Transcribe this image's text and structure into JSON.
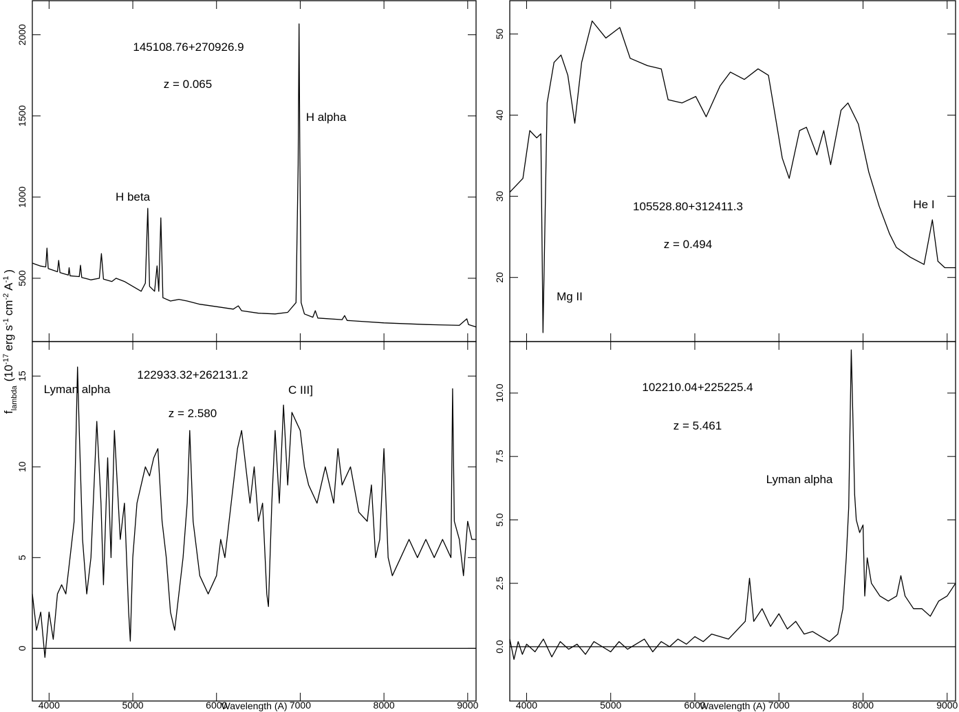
{
  "chart_data": [
    {
      "type": "line",
      "title": "145108.76+270926.9",
      "subtitle": "z = 0.065",
      "annotations": [
        "H beta",
        "H alpha"
      ],
      "ylabel": [
        "f",
        "lambda",
        "(10",
        "-17",
        "erg s",
        "-1",
        "cm",
        "-2",
        "A",
        "-1",
        ")"
      ],
      "color": "#000000",
      "xlim": [
        3800,
        9100
      ],
      "ylim": [
        110,
        2210
      ],
      "yticks": [
        500,
        1000,
        1500,
        2000
      ],
      "x": [
        3800,
        3900,
        3960,
        3975,
        3990,
        4100,
        4115,
        4130,
        4230,
        4240,
        4250,
        4360,
        4375,
        4390,
        4500,
        4600,
        4625,
        4650,
        4750,
        4800,
        4900,
        5000,
        5100,
        5150,
        5179,
        5200,
        5260,
        5290,
        5310,
        5335,
        5360,
        5450,
        5550,
        5650,
        5800,
        6000,
        6200,
        6260,
        6300,
        6500,
        6700,
        6850,
        6950,
        6975,
        6986,
        6995,
        7010,
        7050,
        7150,
        7180,
        7210,
        7500,
        7530,
        7560,
        8000,
        8500,
        8900,
        8990,
        9010,
        9100
      ],
      "values": [
        593,
        575,
        570,
        686,
        560,
        540,
        610,
        535,
        520,
        565,
        515,
        510,
        580,
        505,
        490,
        500,
        652,
        495,
        480,
        500,
        480,
        450,
        420,
        470,
        931,
        450,
        420,
        576,
        420,
        872,
        380,
        360,
        370,
        360,
        340,
        325,
        310,
        330,
        300,
        285,
        280,
        290,
        350,
        1200,
        2067,
        1300,
        350,
        280,
        260,
        300,
        255,
        245,
        270,
        240,
        225,
        215,
        210,
        250,
        215,
        200
      ]
    },
    {
      "type": "line",
      "title": "105528.80+312411.3",
      "subtitle": "z = 0.494",
      "annotations": [
        "Mg II",
        "He I"
      ],
      "color": "#000000",
      "xlim": [
        3800,
        9100
      ],
      "ylim": [
        12.1,
        54.1
      ],
      "yticks": [
        20,
        30,
        40,
        50
      ],
      "x": [
        3800,
        3956,
        4038,
        4120,
        4170,
        4195,
        4244,
        4326,
        4409,
        4490,
        4573,
        4655,
        4779,
        4943,
        5108,
        5231,
        5437,
        5601,
        5683,
        5847,
        6012,
        6135,
        6300,
        6423,
        6588,
        6752,
        6875,
        6958,
        7040,
        7122,
        7245,
        7327,
        7451,
        7533,
        7615,
        7738,
        7821,
        7944,
        8068,
        8191,
        8314,
        8396,
        8561,
        8725,
        8824,
        8890,
        8972,
        9100
      ],
      "values": [
        30.5,
        32.2,
        38.1,
        37.2,
        37.7,
        13.2,
        41.5,
        46.5,
        47.4,
        44.9,
        39,
        46.5,
        51.6,
        49.5,
        50.8,
        47,
        46.1,
        45.7,
        41.9,
        41.5,
        42.3,
        39.8,
        43.6,
        45.3,
        44.4,
        45.7,
        44.9,
        39.8,
        34.7,
        32.2,
        38.1,
        38.5,
        35.1,
        38.1,
        33.9,
        40.6,
        41.5,
        38.9,
        33,
        28.8,
        25.4,
        23.7,
        22.5,
        21.6,
        27.1,
        22,
        21.2,
        21.2
      ]
    },
    {
      "type": "line",
      "title": "122933.32+262131.2",
      "subtitle": "z = 2.580",
      "annotations": [
        "Lyman alpha",
        "C III]"
      ],
      "xlabel": "Wavelength (A)",
      "color": "#000000",
      "xlim": [
        3800,
        9100
      ],
      "ylim": [
        -2.9,
        16.9
      ],
      "yticks": [
        0,
        5,
        10,
        15
      ],
      "xticks": [
        4000,
        5000,
        6000,
        7000,
        8000,
        9000
      ],
      "x": [
        3800,
        3850,
        3900,
        3950,
        4000,
        4050,
        4100,
        4150,
        4200,
        4250,
        4300,
        4340,
        4360,
        4400,
        4450,
        4500,
        4570,
        4620,
        4650,
        4700,
        4740,
        4780,
        4850,
        4900,
        4950,
        4970,
        5000,
        5050,
        5100,
        5150,
        5200,
        5250,
        5300,
        5350,
        5400,
        5450,
        5500,
        5550,
        5600,
        5650,
        5680,
        5720,
        5800,
        5900,
        6000,
        6050,
        6100,
        6200,
        6250,
        6300,
        6350,
        6400,
        6450,
        6500,
        6550,
        6600,
        6620,
        6660,
        6700,
        6750,
        6800,
        6850,
        6900,
        6950,
        7000,
        7050,
        7100,
        7200,
        7300,
        7400,
        7450,
        7500,
        7600,
        7700,
        7800,
        7850,
        7900,
        7950,
        8000,
        8050,
        8100,
        8200,
        8300,
        8400,
        8500,
        8600,
        8700,
        8800,
        8820,
        8840,
        8900,
        8950,
        9000,
        9050,
        9100
      ],
      "values": [
        3,
        1,
        2,
        -0.5,
        2,
        0.5,
        3,
        3.5,
        3,
        5,
        7,
        15.5,
        12,
        6,
        3,
        5,
        12.5,
        8,
        3.5,
        10.5,
        5,
        12,
        6,
        8,
        2,
        0.4,
        5,
        8,
        9,
        10,
        9.5,
        10.5,
        11,
        7,
        5,
        2,
        1,
        3,
        5,
        8,
        12,
        7,
        4,
        3,
        4,
        6,
        5,
        9,
        11,
        12,
        10,
        8,
        10,
        7,
        8,
        3,
        2.3,
        8,
        12,
        8,
        13.4,
        9,
        13,
        12.5,
        12,
        10,
        9,
        8,
        10,
        8,
        11,
        9,
        10,
        7.5,
        7,
        9,
        5,
        6,
        11,
        5,
        4,
        5,
        6,
        5,
        6,
        5,
        6,
        5,
        14.3,
        7,
        6,
        4,
        7,
        6,
        6
      ]
    },
    {
      "type": "line",
      "title": "102210.04+225225.4",
      "subtitle": "z = 5.461",
      "annotations": [
        "Lyman alpha"
      ],
      "xlabel": "Wavelength (A)",
      "color": "#000000",
      "xlim": [
        3800,
        9100
      ],
      "ylim": [
        -2.14,
        12.03
      ],
      "yticks": [
        {
          "value": 0,
          "label": "0.0"
        },
        2.5,
        {
          "value": 5,
          "label": "5.0"
        },
        7.5,
        {
          "value": 10,
          "label": "10.0"
        }
      ],
      "xticks": [
        4000,
        5000,
        6000,
        7000,
        8000,
        9000
      ],
      "x": [
        3800,
        3850,
        3900,
        3950,
        4000,
        4100,
        4200,
        4300,
        4400,
        4500,
        4600,
        4700,
        4800,
        4900,
        5000,
        5100,
        5200,
        5300,
        5400,
        5500,
        5600,
        5700,
        5800,
        5900,
        6000,
        6100,
        6200,
        6400,
        6600,
        6650,
        6700,
        6800,
        6900,
        7000,
        7100,
        7200,
        7300,
        7400,
        7500,
        7600,
        7700,
        7760,
        7800,
        7830,
        7860,
        7880,
        7900,
        7920,
        7960,
        8000,
        8020,
        8050,
        8100,
        8200,
        8300,
        8400,
        8450,
        8500,
        8600,
        8700,
        8800,
        8900,
        9000,
        9100
      ],
      "values": [
        0.3,
        -0.5,
        0.2,
        -0.3,
        0.1,
        -0.2,
        0.3,
        -0.4,
        0.2,
        -0.1,
        0.1,
        -0.3,
        0.2,
        0,
        -0.2,
        0.2,
        -0.1,
        0.1,
        0.3,
        -0.2,
        0.2,
        0,
        0.3,
        0.1,
        0.4,
        0.2,
        0.5,
        0.3,
        1,
        2.7,
        1,
        1.5,
        0.8,
        1.3,
        0.7,
        1,
        0.5,
        0.6,
        0.4,
        0.2,
        0.5,
        1.5,
        3.5,
        5.5,
        11.7,
        9,
        6,
        5,
        4.5,
        4.8,
        2,
        3.5,
        2.5,
        2,
        1.8,
        2,
        2.8,
        2,
        1.5,
        1.5,
        1.2,
        1.8,
        2,
        2.5
      ]
    }
  ]
}
